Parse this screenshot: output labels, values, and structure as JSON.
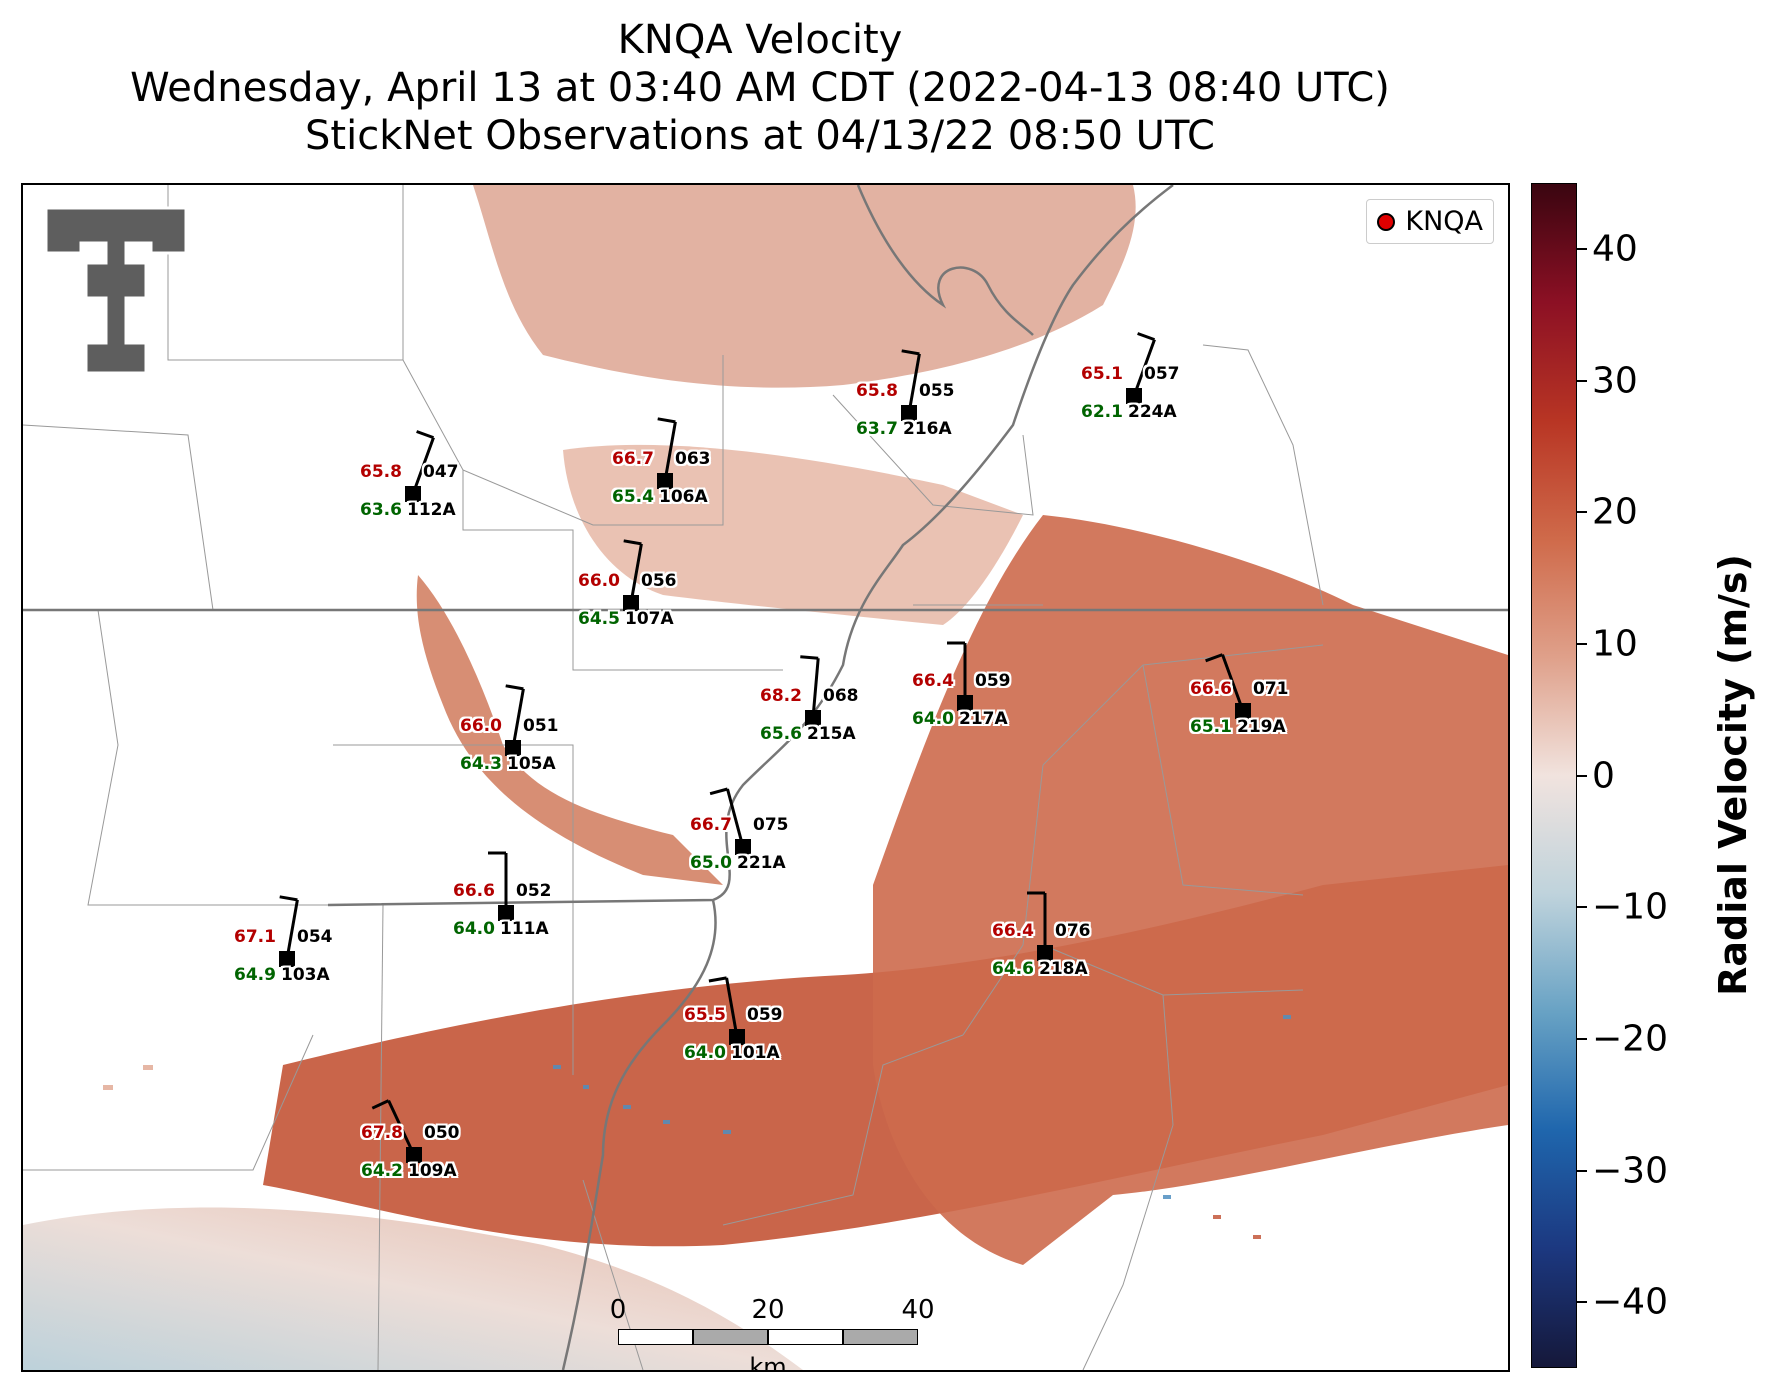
{
  "title": {
    "line1": "KNQA Velocity",
    "line2": "Wednesday, April 13 at 03:40 AM CDT (2022-04-13 08:40 UTC)",
    "line3": "StickNet Observations at 04/13/22 08:50 UTC"
  },
  "legend": {
    "label": "KNQA",
    "marker_color": "#e00000"
  },
  "scalebar": {
    "labels": [
      "0",
      "20",
      "40"
    ],
    "unit": "km"
  },
  "colorbar": {
    "label": "Radial Velocity (m/s)",
    "ticks": [
      "40",
      "30",
      "20",
      "10",
      "0",
      "−10",
      "−20",
      "−30",
      "−40"
    ],
    "range": [
      -45,
      45
    ]
  },
  "logo": {
    "name": "texas-tech-double-t-logo"
  },
  "stations": [
    {
      "temp": "65.8",
      "dew": "63.6",
      "id": "047",
      "probe": "112A",
      "barb_dir": 200
    },
    {
      "temp": "66.7",
      "dew": "65.4",
      "id": "063",
      "probe": "106A",
      "barb_dir": 190
    },
    {
      "temp": "65.8",
      "dew": "63.7",
      "id": "055",
      "probe": "216A",
      "barb_dir": 190
    },
    {
      "temp": "65.1",
      "dew": "62.1",
      "id": "057",
      "probe": "224A",
      "barb_dir": 200
    },
    {
      "temp": "66.0",
      "dew": "64.5",
      "id": "056",
      "probe": "107A",
      "barb_dir": 190
    },
    {
      "temp": "68.2",
      "dew": "65.6",
      "id": "068",
      "probe": "215A",
      "barb_dir": 185
    },
    {
      "temp": "66.4",
      "dew": "64.0",
      "id": "059",
      "probe": "217A",
      "barb_dir": 180
    },
    {
      "temp": "66.6",
      "dew": "65.1",
      "id": "071",
      "probe": "219A",
      "barb_dir": 160
    },
    {
      "temp": "66.0",
      "dew": "64.3",
      "id": "051",
      "probe": "105A",
      "barb_dir": 190
    },
    {
      "temp": "66.7",
      "dew": "65.0",
      "id": "075",
      "probe": "221A",
      "barb_dir": 165
    },
    {
      "temp": "66.6",
      "dew": "64.0",
      "id": "052",
      "probe": "111A",
      "barb_dir": 180
    },
    {
      "temp": "67.1",
      "dew": "64.9",
      "id": "054",
      "probe": "103A",
      "barb_dir": 190
    },
    {
      "temp": "66.4",
      "dew": "64.6",
      "id": "076",
      "probe": "218A",
      "barb_dir": 180
    },
    {
      "temp": "65.5",
      "dew": "64.0",
      "id": "059",
      "probe": "101A",
      "barb_dir": 170
    },
    {
      "temp": "67.8",
      "dew": "64.2",
      "id": "050",
      "probe": "109A",
      "barb_dir": 155
    }
  ]
}
